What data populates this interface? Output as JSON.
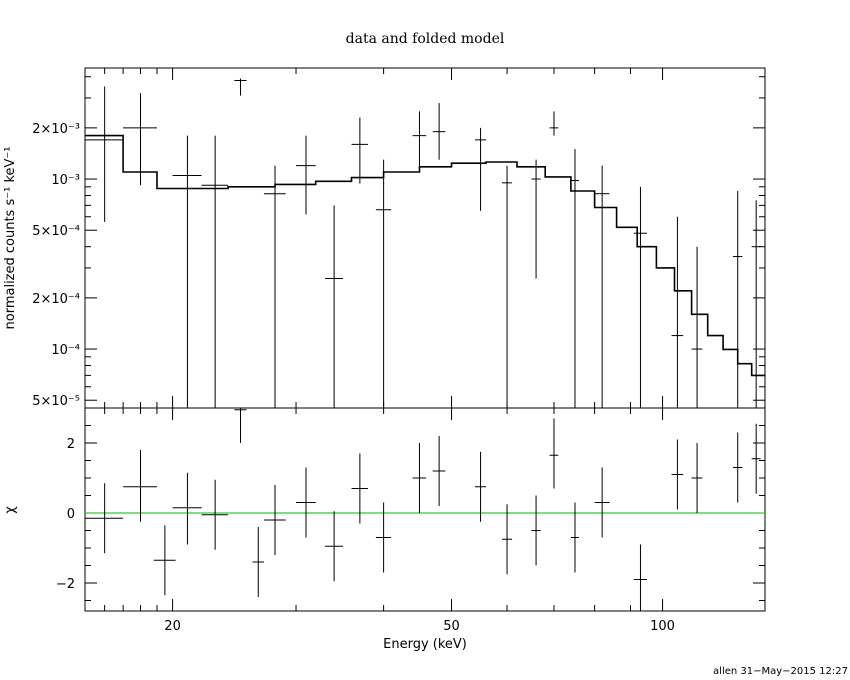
{
  "chart_data": [
    {
      "type": "line",
      "panel": "top",
      "title": "data and folded model",
      "xlabel": "",
      "ylabel": "normalized counts s⁻¹ keV⁻¹",
      "x_scale": "log",
      "y_scale": "log",
      "xlim": [
        15,
        140
      ],
      "ylim": [
        4.5e-05,
        0.0045
      ],
      "y_tick_labels": [
        "5×10⁻⁵",
        "10⁻⁴",
        "2×10⁻⁴",
        "5×10⁻⁴",
        "10⁻³",
        "2×10⁻³"
      ],
      "y_tick_values": [
        5e-05,
        0.0001,
        0.0002,
        0.0005,
        0.001,
        0.002
      ],
      "grid": false,
      "data_points": [
        {
          "x": 16,
          "xlo": 15,
          "xhi": 17,
          "y": 0.0017,
          "ylo": 0.00056,
          "yhi": 0.0035
        },
        {
          "x": 18,
          "xlo": 17,
          "xhi": 19,
          "y": 0.002,
          "ylo": 0.00092,
          "yhi": 0.0032
        },
        {
          "x": 21,
          "xlo": 20,
          "xhi": 22,
          "y": 0.00105,
          "ylo": 4.5e-05,
          "yhi": 0.0018
        },
        {
          "x": 23,
          "xlo": 22,
          "xhi": 24,
          "y": 0.00092,
          "ylo": 4.5e-05,
          "yhi": 0.0018
        },
        {
          "x": 25,
          "xlo": 24.5,
          "xhi": 25.5,
          "y": 0.0038,
          "ylo": 0.0031,
          "yhi": 0.0039
        },
        {
          "x": 28,
          "xlo": 27,
          "xhi": 29,
          "y": 0.00082,
          "ylo": 4.5e-05,
          "yhi": 0.0012
        },
        {
          "x": 31,
          "xlo": 30,
          "xhi": 32,
          "y": 0.0012,
          "ylo": 0.00062,
          "yhi": 0.0018
        },
        {
          "x": 34,
          "xlo": 33,
          "xhi": 35,
          "y": 0.00026,
          "ylo": 4.5e-05,
          "yhi": 0.0007
        },
        {
          "x": 37,
          "xlo": 36,
          "xhi": 38,
          "y": 0.0016,
          "ylo": 0.00094,
          "yhi": 0.0023
        },
        {
          "x": 40,
          "xlo": 39,
          "xhi": 41,
          "y": 0.00066,
          "ylo": 4.5e-05,
          "yhi": 0.0013
        },
        {
          "x": 45,
          "xlo": 44,
          "xhi": 46,
          "y": 0.0018,
          "ylo": 0.0011,
          "yhi": 0.0025
        },
        {
          "x": 48,
          "xlo": 47,
          "xhi": 49,
          "y": 0.0019,
          "ylo": 0.0013,
          "yhi": 0.0028
        },
        {
          "x": 55,
          "xlo": 54,
          "xhi": 56,
          "y": 0.0017,
          "ylo": 0.00065,
          "yhi": 0.002
        },
        {
          "x": 60,
          "xlo": 59,
          "xhi": 61,
          "y": 0.00095,
          "ylo": 4.5e-05,
          "yhi": 0.0012
        },
        {
          "x": 66,
          "xlo": 65,
          "xhi": 67,
          "y": 0.001,
          "ylo": 0.00026,
          "yhi": 0.0013
        },
        {
          "x": 70,
          "xlo": 69,
          "xhi": 71,
          "y": 0.002,
          "ylo": 0.0018,
          "yhi": 0.0025
        },
        {
          "x": 75,
          "xlo": 74,
          "xhi": 76,
          "y": 0.00098,
          "ylo": 4.5e-05,
          "yhi": 0.0015
        },
        {
          "x": 82,
          "xlo": 80,
          "xhi": 84,
          "y": 0.00082,
          "ylo": 4.5e-05,
          "yhi": 0.0012
        },
        {
          "x": 93,
          "xlo": 91,
          "xhi": 95,
          "y": 0.00048,
          "ylo": 4.5e-05,
          "yhi": 0.0009
        },
        {
          "x": 105,
          "xlo": 103,
          "xhi": 107,
          "y": 0.00012,
          "ylo": 4.5e-05,
          "yhi": 0.0006
        },
        {
          "x": 112,
          "xlo": 110,
          "xhi": 114,
          "y": 0.0001,
          "ylo": 4.5e-05,
          "yhi": 0.0004
        },
        {
          "x": 128,
          "xlo": 126,
          "xhi": 130,
          "y": 0.00035,
          "ylo": 4.5e-05,
          "yhi": 0.00085
        },
        {
          "x": 136,
          "xlo": 134,
          "xhi": 138,
          "y": 0.0004,
          "ylo": 4.5e-05,
          "yhi": 0.00075
        }
      ],
      "model": {
        "x": [
          15,
          17,
          19,
          21,
          24,
          28,
          32,
          36,
          40,
          45,
          50,
          56,
          62,
          68,
          74,
          80,
          86,
          92,
          98,
          104,
          110,
          116,
          122,
          128,
          134,
          140
        ],
        "y": [
          0.0018,
          0.0011,
          0.00088,
          0.00088,
          0.0009,
          0.00093,
          0.00097,
          0.00102,
          0.0011,
          0.00118,
          0.00124,
          0.00126,
          0.00118,
          0.00103,
          0.00085,
          0.00068,
          0.00052,
          0.0004,
          0.0003,
          0.00022,
          0.00016,
          0.00012,
          9.95e-05,
          8.2e-05,
          7e-05,
          6e-05
        ]
      }
    },
    {
      "type": "line",
      "panel": "bottom",
      "xlabel": "Energy (keV)",
      "ylabel": "χ",
      "x_scale": "log",
      "xlim": [
        15,
        140
      ],
      "ylim": [
        -2.8,
        3.0
      ],
      "x_tick_labels": [
        "20",
        "50",
        "100"
      ],
      "x_tick_values": [
        20,
        50,
        100
      ],
      "y_tick_labels": [
        "−2",
        "0",
        "2"
      ],
      "y_tick_values": [
        -2,
        0,
        2
      ],
      "reference_line": {
        "y": 0,
        "color": "#33cc33"
      },
      "residuals": [
        {
          "x": 16,
          "xlo": 15,
          "xhi": 17,
          "y": -0.15,
          "ylo": -1.15,
          "yhi": 0.85
        },
        {
          "x": 18,
          "xlo": 17,
          "xhi": 19,
          "y": 0.75,
          "ylo": -0.25,
          "yhi": 1.8
        },
        {
          "x": 19.5,
          "xlo": 18.8,
          "xhi": 20.2,
          "y": -1.35,
          "ylo": -2.35,
          "yhi": -0.35
        },
        {
          "x": 21,
          "xlo": 20,
          "xhi": 22,
          "y": 0.15,
          "ylo": -0.9,
          "yhi": 1.15
        },
        {
          "x": 23,
          "xlo": 22,
          "xhi": 24,
          "y": -0.05,
          "ylo": -1.05,
          "yhi": 0.95
        },
        {
          "x": 25,
          "xlo": 24.5,
          "xhi": 25.5,
          "y": 2.95,
          "ylo": 2.0,
          "yhi": 3.0
        },
        {
          "x": 26.5,
          "xlo": 26,
          "xhi": 27,
          "y": -1.4,
          "ylo": -2.4,
          "yhi": -0.4
        },
        {
          "x": 28,
          "xlo": 27,
          "xhi": 29,
          "y": -0.2,
          "ylo": -1.2,
          "yhi": 0.8
        },
        {
          "x": 31,
          "xlo": 30,
          "xhi": 32,
          "y": 0.3,
          "ylo": -0.7,
          "yhi": 1.3
        },
        {
          "x": 34,
          "xlo": 33,
          "xhi": 35,
          "y": -0.95,
          "ylo": -1.95,
          "yhi": 0.05
        },
        {
          "x": 37,
          "xlo": 36,
          "xhi": 38,
          "y": 0.7,
          "ylo": -0.3,
          "yhi": 1.7
        },
        {
          "x": 40,
          "xlo": 39,
          "xhi": 41,
          "y": -0.7,
          "ylo": -1.7,
          "yhi": 0.3
        },
        {
          "x": 45,
          "xlo": 44,
          "xhi": 46,
          "y": 1.0,
          "ylo": 0.0,
          "yhi": 2.0
        },
        {
          "x": 48,
          "xlo": 47,
          "xhi": 49,
          "y": 1.2,
          "ylo": 0.2,
          "yhi": 2.2
        },
        {
          "x": 55,
          "xlo": 54,
          "xhi": 56,
          "y": 0.75,
          "ylo": -0.25,
          "yhi": 1.75
        },
        {
          "x": 60,
          "xlo": 59,
          "xhi": 61,
          "y": -0.75,
          "ylo": -1.75,
          "yhi": 0.25
        },
        {
          "x": 66,
          "xlo": 65,
          "xhi": 67,
          "y": -0.5,
          "ylo": -1.5,
          "yhi": 0.5
        },
        {
          "x": 70,
          "xlo": 69,
          "xhi": 71,
          "y": 1.65,
          "ylo": 0.7,
          "yhi": 2.7
        },
        {
          "x": 75,
          "xlo": 74,
          "xhi": 76,
          "y": -0.7,
          "ylo": -1.7,
          "yhi": 0.3
        },
        {
          "x": 82,
          "xlo": 80,
          "xhi": 84,
          "y": 0.3,
          "ylo": -0.7,
          "yhi": 1.3
        },
        {
          "x": 93,
          "xlo": 91,
          "xhi": 95,
          "y": -1.9,
          "ylo": -2.8,
          "yhi": -0.9
        },
        {
          "x": 105,
          "xlo": 103,
          "xhi": 107,
          "y": 1.1,
          "ylo": 0.1,
          "yhi": 2.1
        },
        {
          "x": 112,
          "xlo": 110,
          "xhi": 114,
          "y": 1.0,
          "ylo": 0.0,
          "yhi": 2.0
        },
        {
          "x": 128,
          "xlo": 126,
          "xhi": 130,
          "y": 1.3,
          "ylo": 0.3,
          "yhi": 2.3
        },
        {
          "x": 136,
          "xlo": 134,
          "xhi": 138,
          "y": 1.55,
          "ylo": 0.55,
          "yhi": 2.55
        }
      ]
    }
  ],
  "footer": "allen 31−May−2015 12:27"
}
